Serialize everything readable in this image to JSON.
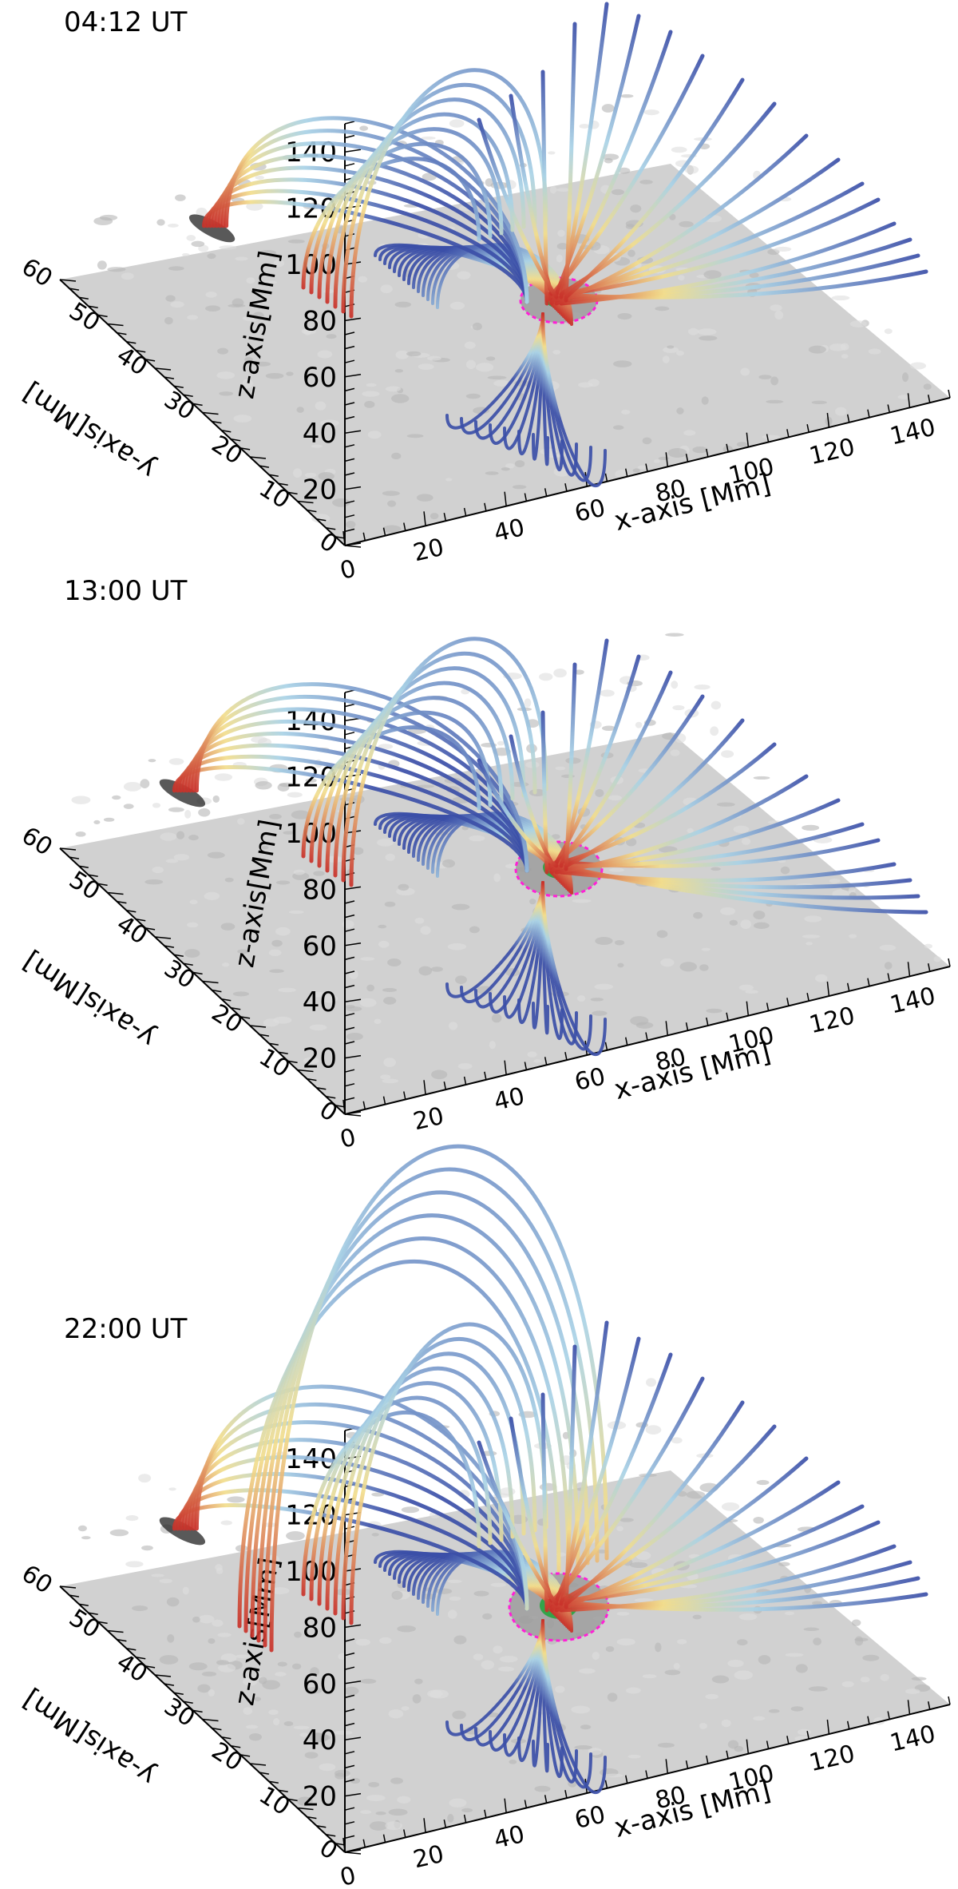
{
  "panels": [
    {
      "time": "04:12 UT",
      "z_axis_label": "z-axis[Mm]",
      "x_axis_label": "x-axis [Mm]",
      "y_axis_label": "y-axis[Mm]",
      "z_ticks": [
        "20",
        "40",
        "60",
        "80",
        "100",
        "120",
        "140"
      ],
      "x_ticks": [
        "0",
        "20",
        "40",
        "60",
        "80",
        "100",
        "120",
        "140"
      ],
      "y_ticks": [
        "0",
        "10",
        "20",
        "30",
        "40",
        "50",
        "60"
      ]
    },
    {
      "time": "13:00 UT",
      "z_axis_label": "z-axis[Mm]",
      "x_axis_label": "x-axis [Mm]",
      "y_axis_label": "y-axis[Mm]",
      "z_ticks": [
        "20",
        "40",
        "60",
        "80",
        "100",
        "120",
        "140"
      ],
      "x_ticks": [
        "0",
        "20",
        "40",
        "60",
        "80",
        "100",
        "120",
        "140"
      ],
      "y_ticks": [
        "0",
        "10",
        "20",
        "30",
        "40",
        "50",
        "60"
      ]
    },
    {
      "time": "22:00 UT",
      "z_axis_label": "z-axis[Mm]",
      "x_axis_label": "x-axis [Mm]",
      "y_axis_label": "y-axis[Mm]",
      "z_ticks": [
        "20",
        "40",
        "60",
        "80",
        "100",
        "120",
        "140"
      ],
      "x_ticks": [
        "0",
        "20",
        "40",
        "60",
        "80",
        "100",
        "120",
        "140"
      ],
      "y_ticks": [
        "0",
        "10",
        "20",
        "30",
        "40",
        "50",
        "60"
      ]
    }
  ],
  "colors": {
    "plane": "#c9c9c9",
    "dark_spot": "#222222",
    "contour_magenta": "#ff1fd6",
    "core_green": "#1fa33a",
    "line_blue": "#3b4fa8",
    "line_lightblue": "#a9d2e6",
    "line_yellow": "#f2dd8c",
    "line_red": "#c9322a"
  }
}
